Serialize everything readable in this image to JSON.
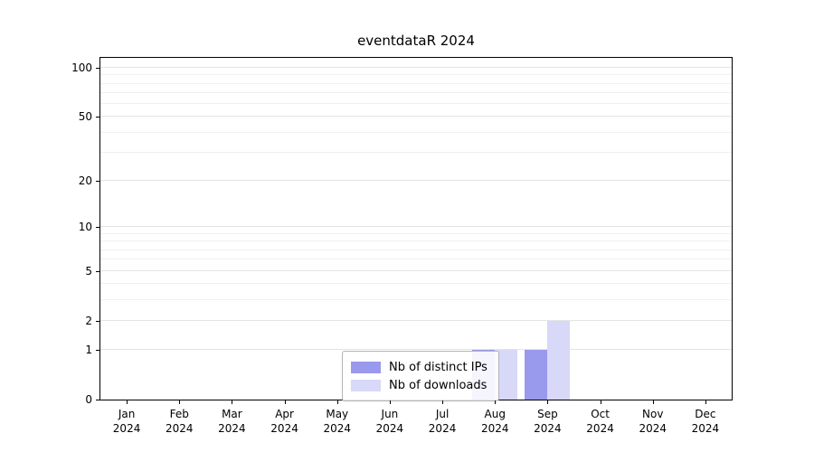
{
  "chart_data": {
    "type": "bar",
    "title": "eventdataR 2024",
    "xlabel": "",
    "ylabel": "",
    "categories": [
      "Jan",
      "Feb",
      "Mar",
      "Apr",
      "May",
      "Jun",
      "Jul",
      "Aug",
      "Sep",
      "Oct",
      "Nov",
      "Dec"
    ],
    "year_label": "2024",
    "series": [
      {
        "name": "Nb of distinct IPs",
        "color": "#9999ed",
        "values": [
          0,
          0,
          0,
          0,
          0,
          0,
          0,
          1,
          1,
          0,
          0,
          0
        ]
      },
      {
        "name": "Nb of downloads",
        "color": "#d8d8f8",
        "values": [
          0,
          0,
          0,
          0,
          0,
          0,
          0,
          1,
          2,
          0,
          0,
          0
        ]
      }
    ],
    "yticks": [
      0,
      1,
      2,
      5,
      10,
      20,
      50,
      100
    ],
    "minor_yticks": [
      3,
      4,
      6,
      7,
      8,
      9,
      30,
      40,
      60,
      70,
      80,
      90
    ],
    "scale": "log1p",
    "ylim": [
      0,
      115
    ],
    "grid": true,
    "legend_position": "inside-bottom-center"
  }
}
